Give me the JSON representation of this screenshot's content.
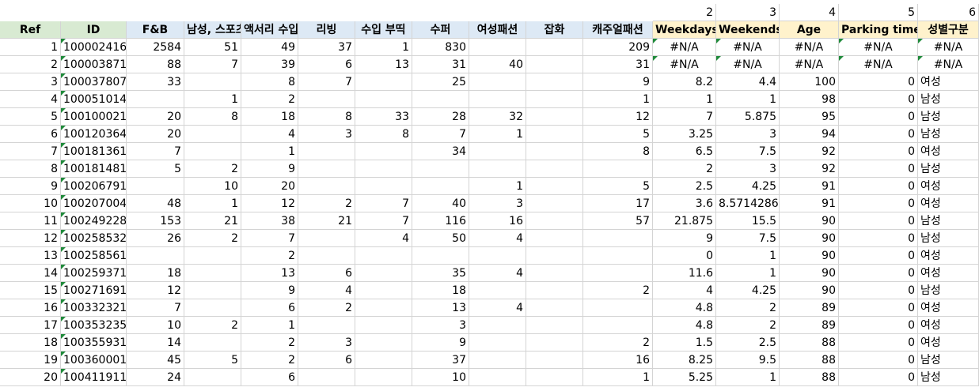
{
  "top_row": [
    "2",
    "3",
    "4",
    "5",
    "6"
  ],
  "headers": [
    "Ref",
    "ID",
    "F&B",
    "남성, 스포츠",
    "액서리 수입",
    "리빙",
    "수입 부띡",
    "수퍼",
    "여성패션",
    "잡화",
    "캐주얼패션",
    "Weekdays",
    "Weekends",
    "Age",
    "Parking time",
    "성별구분"
  ],
  "rows": [
    [
      "1",
      "100002416",
      "2584",
      "51",
      "49",
      "37",
      "1",
      "830",
      "",
      "",
      "209",
      "#N/A",
      "#N/A",
      "#N/A",
      "#N/A",
      "#N/A"
    ],
    [
      "2",
      "100003871",
      "88",
      "7",
      "39",
      "6",
      "13",
      "31",
      "40",
      "",
      "31",
      "#N/A",
      "#N/A",
      "#N/A",
      "#N/A",
      "#N/A"
    ],
    [
      "3",
      "100037807",
      "33",
      "",
      "8",
      "7",
      "",
      "25",
      "",
      "",
      "9",
      "8.2",
      "4.4",
      "100",
      "0",
      "여성"
    ],
    [
      "4",
      "100051014",
      "",
      "1",
      "2",
      "",
      "",
      "",
      "",
      "",
      "1",
      "1",
      "1",
      "98",
      "0",
      "남성"
    ],
    [
      "5",
      "100100021",
      "20",
      "8",
      "18",
      "8",
      "33",
      "28",
      "32",
      "",
      "12",
      "7",
      "5.875",
      "95",
      "0",
      "남성"
    ],
    [
      "6",
      "100120364",
      "20",
      "",
      "4",
      "3",
      "8",
      "7",
      "1",
      "",
      "5",
      "3.25",
      "3",
      "94",
      "0",
      "남성"
    ],
    [
      "7",
      "100181361",
      "7",
      "",
      "1",
      "",
      "",
      "34",
      "",
      "",
      "8",
      "6.5",
      "7.5",
      "92",
      "0",
      "여성"
    ],
    [
      "8",
      "100181481",
      "5",
      "2",
      "9",
      "",
      "",
      "",
      "",
      "",
      "",
      "2",
      "3",
      "92",
      "0",
      "남성"
    ],
    [
      "9",
      "100206791",
      "",
      "10",
      "20",
      "",
      "",
      "",
      "1",
      "",
      "5",
      "2.5",
      "4.25",
      "91",
      "0",
      "여성"
    ],
    [
      "10",
      "100207004",
      "48",
      "1",
      "12",
      "2",
      "7",
      "40",
      "3",
      "",
      "17",
      "3.6",
      "8.5714286",
      "91",
      "0",
      "여성"
    ],
    [
      "11",
      "100249228",
      "153",
      "21",
      "38",
      "21",
      "7",
      "116",
      "16",
      "",
      "57",
      "21.875",
      "15.5",
      "90",
      "0",
      "남성"
    ],
    [
      "12",
      "100258532",
      "26",
      "2",
      "7",
      "",
      "4",
      "50",
      "4",
      "",
      "",
      "9",
      "7.5",
      "90",
      "0",
      "남성"
    ],
    [
      "13",
      "100258561",
      "",
      "",
      "2",
      "",
      "",
      "",
      "",
      "",
      "",
      "0",
      "1",
      "90",
      "0",
      "여성"
    ],
    [
      "14",
      "100259371",
      "18",
      "",
      "13",
      "6",
      "",
      "35",
      "4",
      "",
      "",
      "11.6",
      "1",
      "90",
      "0",
      "여성"
    ],
    [
      "15",
      "100271691",
      "12",
      "",
      "9",
      "4",
      "",
      "18",
      "",
      "",
      "2",
      "4",
      "4.25",
      "90",
      "0",
      "남성"
    ],
    [
      "16",
      "100332321",
      "7",
      "",
      "6",
      "2",
      "",
      "13",
      "4",
      "",
      "",
      "4.8",
      "2",
      "89",
      "0",
      "여성"
    ],
    [
      "17",
      "100353235",
      "10",
      "2",
      "1",
      "",
      "",
      "3",
      "",
      "",
      "",
      "4.8",
      "2",
      "89",
      "0",
      "여성"
    ],
    [
      "18",
      "100355931",
      "14",
      "",
      "2",
      "3",
      "",
      "9",
      "",
      "",
      "2",
      "1.5",
      "2.5",
      "88",
      "0",
      "여성"
    ],
    [
      "19",
      "100360001",
      "45",
      "5",
      "2",
      "6",
      "",
      "37",
      "",
      "",
      "16",
      "8.25",
      "9.5",
      "88",
      "0",
      "남성"
    ],
    [
      "20",
      "100411911",
      "24",
      "",
      "6",
      "",
      "",
      "10",
      "",
      "",
      "1",
      "5.25",
      "1",
      "88",
      "0",
      "남성"
    ]
  ]
}
